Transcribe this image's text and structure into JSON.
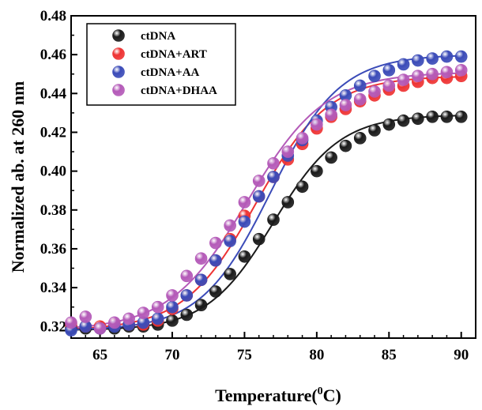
{
  "chart_data": {
    "type": "scatter",
    "xlabel": "Temperature(",
    "xlabel_sup": "0",
    "xlabel_tail": "C)",
    "ylabel": "Normalized ab. at 260 nm",
    "xlim": [
      63,
      91
    ],
    "ylim": [
      0.314,
      0.48
    ],
    "xticks": [
      65,
      70,
      75,
      80,
      85,
      90
    ],
    "yticks": [
      0.32,
      0.34,
      0.36,
      0.38,
      0.4,
      0.42,
      0.44,
      0.46,
      0.48
    ],
    "ytick_labels": [
      "0.32",
      "0.34",
      "0.36",
      "0.38",
      "0.40",
      "0.42",
      "0.44",
      "0.46",
      "0.48"
    ],
    "legend_position": "top-left",
    "x": [
      63,
      64,
      65,
      66,
      67,
      68,
      69,
      70,
      71,
      72,
      73,
      74,
      75,
      76,
      77,
      78,
      79,
      80,
      81,
      82,
      83,
      84,
      85,
      86,
      87,
      88,
      89,
      90
    ],
    "series": [
      {
        "name": "ctDNA",
        "color": "#1a1a1a",
        "values": [
          0.319,
          0.319,
          0.319,
          0.319,
          0.32,
          0.32,
          0.321,
          0.323,
          0.326,
          0.331,
          0.338,
          0.347,
          0.356,
          0.365,
          0.375,
          0.384,
          0.392,
          0.4,
          0.407,
          0.413,
          0.417,
          0.421,
          0.424,
          0.426,
          0.427,
          0.428,
          0.428,
          0.428
        ],
        "fit": {
          "bottom": 0.318,
          "top": 0.429,
          "tm": 77.0,
          "slope": 2.3
        }
      },
      {
        "name": "ctDNA+ART",
        "color": "#ee3333",
        "values": [
          0.321,
          0.32,
          0.32,
          0.321,
          0.321,
          0.321,
          0.323,
          0.329,
          0.336,
          0.344,
          0.354,
          0.365,
          0.377,
          0.387,
          0.397,
          0.406,
          0.414,
          0.422,
          0.428,
          0.432,
          0.436,
          0.439,
          0.442,
          0.444,
          0.446,
          0.448,
          0.448,
          0.449
        ],
        "fit": {
          "bottom": 0.318,
          "top": 0.449,
          "tm": 75.8,
          "slope": 2.5
        }
      },
      {
        "name": "ctDNA+AA",
        "color": "#3b4bb8",
        "values": [
          0.318,
          0.32,
          0.319,
          0.32,
          0.321,
          0.322,
          0.324,
          0.33,
          0.336,
          0.344,
          0.354,
          0.364,
          0.374,
          0.387,
          0.397,
          0.408,
          0.416,
          0.426,
          0.433,
          0.439,
          0.444,
          0.449,
          0.452,
          0.455,
          0.457,
          0.458,
          0.459,
          0.459
        ],
        "fit": {
          "bottom": 0.318,
          "top": 0.46,
          "tm": 76.8,
          "slope": 2.4
        }
      },
      {
        "name": "ctDNA+DHAA",
        "color": "#b45ab8",
        "values": [
          0.322,
          0.325,
          0.319,
          0.322,
          0.324,
          0.327,
          0.33,
          0.336,
          0.346,
          0.355,
          0.363,
          0.372,
          0.384,
          0.395,
          0.404,
          0.41,
          0.417,
          0.424,
          0.429,
          0.434,
          0.437,
          0.441,
          0.444,
          0.447,
          0.449,
          0.45,
          0.451,
          0.452
        ],
        "fit": {
          "bottom": 0.318,
          "top": 0.451,
          "tm": 75.2,
          "slope": 2.7
        }
      }
    ]
  }
}
